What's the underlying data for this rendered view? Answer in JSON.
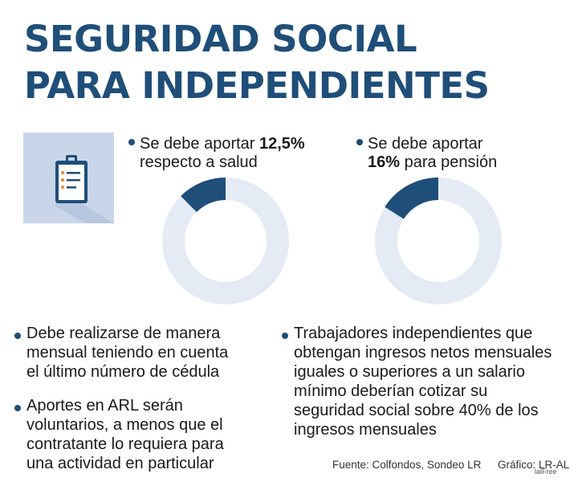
{
  "title": {
    "line1": "SEGURIDAD SOCIAL",
    "line2": "PARA INDEPENDIENTES"
  },
  "colors": {
    "accent": "#1f4e79",
    "ring": "#e4ebf5",
    "icon_bg": "#c9d6ea"
  },
  "icons": {
    "clipboard": "clipboard-icon"
  },
  "chart_data": [
    {
      "type": "pie",
      "labels": [
        "salud"
      ],
      "values": [
        12.5
      ],
      "unit": "%",
      "text": {
        "pre": "Se debe aportar ",
        "bold": "12,5%",
        "post": "",
        "line2": "respecto a salud"
      }
    },
    {
      "type": "pie",
      "labels": [
        "pensión"
      ],
      "values": [
        16
      ],
      "unit": "%",
      "text": {
        "pre": "Se debe aportar",
        "bold": "16%",
        "post": " para pensión"
      }
    }
  ],
  "bullets": {
    "left": [
      {
        "lines": [
          "Debe realizarse de manera",
          "mensual teniendo en cuenta",
          "el último número de cédula"
        ]
      },
      {
        "lines": [
          "Aportes en ARL serán",
          "voluntarios, a menos que el",
          "contratante lo requiera para",
          "una actividad en particular"
        ]
      }
    ],
    "right": [
      {
        "lines": [
          "Trabajadores independientes que",
          "obtengan ingresos netos mensuales",
          "iguales o superiores a un salario",
          "mínimo deberían cotizar su",
          "seguridad social sobre 40% de los",
          "ingresos mensuales"
        ]
      }
    ]
  },
  "footer": {
    "source": "Fuente: Colfondos, Sondeo LR",
    "graphic": "Gráfico: LR-AL",
    "credit": "lalFree"
  }
}
